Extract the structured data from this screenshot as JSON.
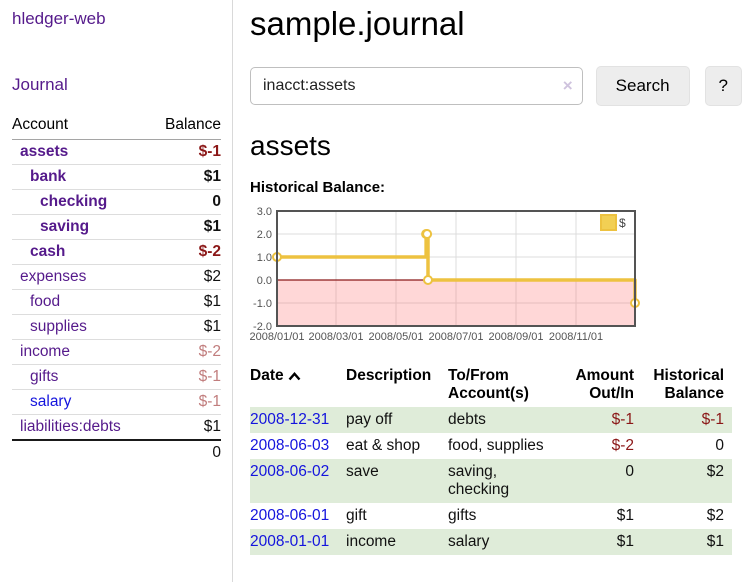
{
  "brand": "hledger-web",
  "nav": {
    "journal": "Journal"
  },
  "sidebar": {
    "headers": {
      "account": "Account",
      "balance": "Balance"
    },
    "accounts": [
      {
        "name": "assets",
        "balance": "$-1"
      },
      {
        "name": "bank",
        "balance": "$1"
      },
      {
        "name": "checking",
        "balance": "0"
      },
      {
        "name": "saving",
        "balance": "$1"
      },
      {
        "name": "cash",
        "balance": "$-2"
      },
      {
        "name": "expenses",
        "balance": "$2"
      },
      {
        "name": "food",
        "balance": "$1"
      },
      {
        "name": "supplies",
        "balance": "$1"
      },
      {
        "name": "income",
        "balance": "$-2"
      },
      {
        "name": "gifts",
        "balance": "$-1"
      },
      {
        "name": "salary",
        "balance": "$-1"
      },
      {
        "name": "liabilities:debts",
        "balance": "$1"
      }
    ],
    "total": "0"
  },
  "main": {
    "title": "sample.journal",
    "search": {
      "value": "inacct:assets",
      "clear_icon": "×",
      "search_button": "Search",
      "help_button": "?"
    },
    "account_title": "assets",
    "chart_title": "Historical Balance:"
  },
  "chart_data": {
    "type": "line",
    "title": "Historical Balance",
    "style": "step-after",
    "series": [
      {
        "name": "$",
        "color": "#edc240",
        "points": [
          [
            "2008-01-01",
            1
          ],
          [
            "2008-06-01",
            2
          ],
          [
            "2008-06-02",
            2
          ],
          [
            "2008-06-03",
            0
          ],
          [
            "2008-12-31",
            -1
          ]
        ]
      }
    ],
    "xrange": [
      "2008-01-01",
      "2008-12-31"
    ],
    "ylim": [
      -2,
      3
    ],
    "yticks": [
      "3.0",
      "2.0",
      "1.0",
      "0.0",
      "-1.0",
      "-2.0"
    ],
    "xticks": [
      "2008/01/01",
      "2008/03/01",
      "2008/05/01",
      "2008/07/01",
      "2008/09/01",
      "2008/11/01"
    ],
    "legend": {
      "position": "top-right"
    },
    "grid": true,
    "negative_region_fill": "#ffdada",
    "zero_line_color": "#8b1a1a"
  },
  "table": {
    "headers": {
      "date": "Date",
      "description": "Description",
      "accounts": "To/From Account(s)",
      "amount": "Amount Out/In",
      "balance": "Historical Balance"
    },
    "rows": [
      {
        "date": "2008-12-31",
        "description": "pay off",
        "accounts": "debts",
        "amount": "$-1",
        "balance": "$-1"
      },
      {
        "date": "2008-06-03",
        "description": "eat & shop",
        "accounts": "food, supplies",
        "amount": "$-2",
        "balance": "0"
      },
      {
        "date": "2008-06-02",
        "description": "save",
        "accounts": "saving, checking",
        "amount": "0",
        "balance": "$2"
      },
      {
        "date": "2008-06-01",
        "description": "gift",
        "accounts": "gifts",
        "amount": "$1",
        "balance": "$2"
      },
      {
        "date": "2008-01-01",
        "description": "income",
        "accounts": "salary",
        "amount": "$1",
        "balance": "$1"
      }
    ]
  },
  "colors": {
    "link_purple": "#551a8b",
    "link_blue": "#1414dd",
    "negative": "#8b1717",
    "negative_dim": "#c17d7d",
    "row_green": "#dfecd9",
    "accent_gold": "#edc240"
  }
}
